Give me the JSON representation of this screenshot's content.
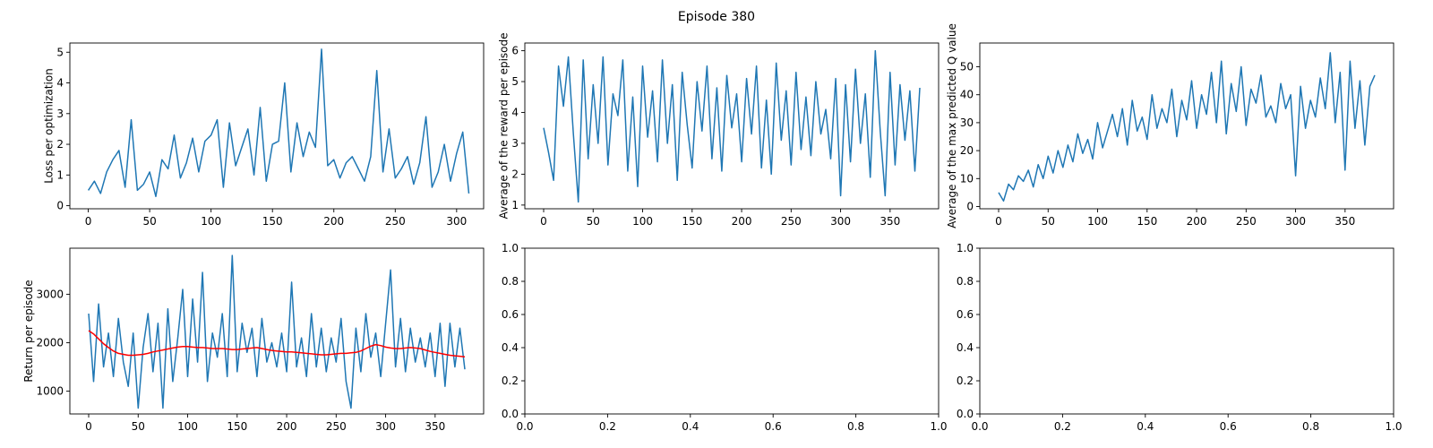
{
  "suptitle": "Episode 380",
  "colors": {
    "series": "#1f77b4",
    "moving_average": "#ff0000"
  },
  "chart_data": [
    {
      "type": "line",
      "id": "loss",
      "xlabel": "",
      "ylabel": "Loss per optimization",
      "xlim": [
        -15,
        322
      ],
      "ylim": [
        -0.1,
        5.3
      ],
      "xticks": [
        0,
        50,
        100,
        150,
        200,
        250,
        300
      ],
      "yticks": [
        0,
        1,
        2,
        3,
        4,
        5
      ],
      "grid": false,
      "series": [
        {
          "color": "#1f77b4",
          "x_start": 0,
          "x_step": 5,
          "values": [
            0.5,
            0.8,
            0.4,
            1.1,
            1.5,
            1.8,
            0.6,
            2.8,
            0.5,
            0.7,
            1.1,
            0.3,
            1.5,
            1.2,
            2.3,
            0.9,
            1.4,
            2.2,
            1.1,
            2.1,
            2.3,
            2.8,
            0.6,
            2.7,
            1.3,
            1.9,
            2.5,
            1.0,
            3.2,
            0.8,
            2.0,
            2.1,
            4.0,
            1.1,
            2.7,
            1.6,
            2.4,
            1.9,
            5.1,
            1.3,
            1.5,
            0.9,
            1.4,
            1.6,
            1.2,
            0.8,
            1.6,
            4.4,
            1.1,
            2.5,
            0.9,
            1.2,
            1.6,
            0.7,
            1.4,
            2.9,
            0.6,
            1.1,
            2.0,
            0.8,
            1.7,
            2.4,
            0.4
          ]
        }
      ]
    },
    {
      "type": "line",
      "id": "reward",
      "xlabel": "",
      "ylabel": "Average of the reward per episode",
      "xlim": [
        -19,
        399
      ],
      "ylim": [
        0.88,
        6.25
      ],
      "xticks": [
        0,
        50,
        100,
        150,
        200,
        250,
        300,
        350
      ],
      "yticks": [
        1,
        2,
        3,
        4,
        5,
        6
      ],
      "grid": false,
      "series": [
        {
          "color": "#1f77b4",
          "x_start": 0,
          "x_step": 5,
          "values": [
            3.5,
            2.7,
            1.8,
            5.5,
            4.2,
            5.8,
            3.3,
            1.1,
            5.7,
            2.5,
            4.9,
            3.0,
            5.8,
            2.3,
            4.6,
            3.9,
            5.7,
            2.1,
            4.5,
            1.6,
            5.5,
            3.2,
            4.7,
            2.4,
            5.7,
            3.0,
            4.9,
            1.8,
            5.3,
            3.6,
            2.2,
            5.0,
            3.4,
            5.5,
            2.5,
            4.8,
            2.1,
            5.2,
            3.5,
            4.6,
            2.4,
            5.1,
            3.3,
            5.5,
            2.2,
            4.4,
            2.0,
            5.6,
            3.1,
            4.7,
            2.3,
            5.3,
            2.8,
            4.5,
            2.6,
            5.0,
            3.3,
            4.1,
            2.5,
            5.1,
            1.3,
            4.9,
            2.4,
            5.4,
            3.0,
            4.6,
            1.9,
            6.0,
            3.4,
            1.3,
            5.3,
            2.3,
            4.9,
            3.1,
            4.7,
            2.1,
            4.8
          ]
        }
      ]
    },
    {
      "type": "line",
      "id": "q-value",
      "xlabel": "",
      "ylabel": "Average of the max predicted Q value",
      "xlim": [
        -19,
        399
      ],
      "ylim": [
        -0.8,
        58.5
      ],
      "xticks": [
        0,
        50,
        100,
        150,
        200,
        250,
        300,
        350
      ],
      "yticks": [
        0,
        10,
        20,
        30,
        40,
        50
      ],
      "grid": false,
      "series": [
        {
          "color": "#1f77b4",
          "x_start": 0,
          "x_step": 5,
          "values": [
            5,
            2,
            8,
            6,
            11,
            9,
            13,
            7,
            15,
            10,
            18,
            12,
            20,
            14,
            22,
            16,
            26,
            19,
            24,
            17,
            30,
            21,
            27,
            33,
            25,
            35,
            22,
            38,
            27,
            32,
            24,
            40,
            28,
            35,
            30,
            42,
            25,
            38,
            31,
            45,
            28,
            40,
            33,
            48,
            30,
            52,
            26,
            44,
            34,
            50,
            29,
            42,
            37,
            47,
            32,
            36,
            30,
            44,
            35,
            40,
            11,
            43,
            28,
            38,
            32,
            46,
            35,
            55,
            30,
            48,
            13,
            52,
            28,
            45,
            22,
            43,
            47
          ]
        }
      ]
    },
    {
      "type": "line",
      "id": "return",
      "xlabel": "",
      "ylabel": "Return per episode",
      "xlim": [
        -19,
        399
      ],
      "ylim": [
        530,
        3950
      ],
      "xticks": [
        0,
        50,
        100,
        150,
        200,
        250,
        300,
        350
      ],
      "yticks": [
        1000,
        2000,
        3000
      ],
      "grid": false,
      "series": [
        {
          "color": "#1f77b4",
          "x_start": 0,
          "x_step": 5,
          "values": [
            2600,
            1200,
            2800,
            1500,
            2200,
            1300,
            2500,
            1600,
            1100,
            2200,
            650,
            1900,
            2600,
            1400,
            2400,
            650,
            2700,
            1200,
            2100,
            3100,
            1300,
            2900,
            1600,
            3450,
            1200,
            2200,
            1700,
            2600,
            1300,
            3800,
            1400,
            2400,
            1800,
            2300,
            1300,
            2500,
            1600,
            2000,
            1500,
            2200,
            1400,
            3250,
            1500,
            2100,
            1300,
            2600,
            1500,
            2300,
            1400,
            2100,
            1600,
            2500,
            1200,
            650,
            2300,
            1400,
            2600,
            1700,
            2200,
            1300,
            2400,
            3500,
            1500,
            2500,
            1400,
            2300,
            1600,
            2100,
            1500,
            2200,
            1300,
            2400,
            1100,
            2400,
            1500,
            2300,
            1450
          ]
        },
        {
          "color": "#ff0000",
          "x_start": 0,
          "x_step": 5,
          "values": [
            2250,
            2180,
            2080,
            1980,
            1900,
            1830,
            1780,
            1760,
            1740,
            1740,
            1750,
            1760,
            1780,
            1810,
            1830,
            1850,
            1870,
            1890,
            1910,
            1920,
            1920,
            1910,
            1900,
            1900,
            1890,
            1880,
            1880,
            1880,
            1870,
            1860,
            1860,
            1870,
            1880,
            1890,
            1900,
            1880,
            1860,
            1840,
            1830,
            1820,
            1810,
            1810,
            1800,
            1790,
            1780,
            1770,
            1760,
            1750,
            1750,
            1760,
            1770,
            1780,
            1780,
            1790,
            1800,
            1830,
            1880,
            1930,
            1960,
            1940,
            1910,
            1890,
            1880,
            1880,
            1890,
            1900,
            1890,
            1880,
            1850,
            1820,
            1800,
            1780,
            1760,
            1740,
            1730,
            1720,
            1710
          ]
        }
      ]
    },
    {
      "type": "line",
      "id": "empty-1",
      "xlabel": "",
      "ylabel": "",
      "xlim": [
        0,
        1
      ],
      "ylim": [
        0,
        1
      ],
      "xticks": [
        0.0,
        0.2,
        0.4,
        0.6,
        0.8,
        1.0
      ],
      "yticks": [
        0.0,
        0.2,
        0.4,
        0.6,
        0.8,
        1.0
      ],
      "grid": false,
      "series": []
    },
    {
      "type": "line",
      "id": "empty-2",
      "xlabel": "",
      "ylabel": "",
      "xlim": [
        0,
        1
      ],
      "ylim": [
        0,
        1
      ],
      "xticks": [
        0.0,
        0.2,
        0.4,
        0.6,
        0.8,
        1.0
      ],
      "yticks": [
        0.0,
        0.2,
        0.4,
        0.6,
        0.8,
        1.0
      ],
      "grid": false,
      "series": []
    }
  ]
}
